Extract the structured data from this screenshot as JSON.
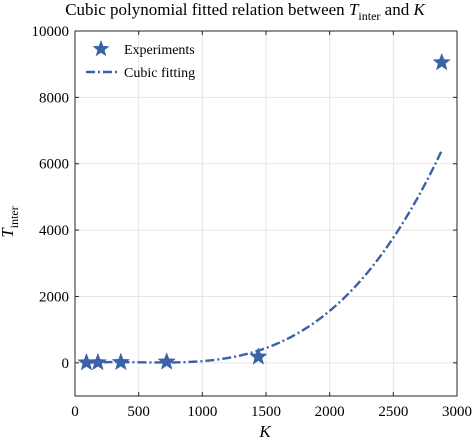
{
  "chart_data": {
    "type": "scatter",
    "title": {
      "prefix": "Cubic polynomial fitted relation between ",
      "var": "T",
      "sub": "inter",
      "suffix": " and ",
      "var2": "K"
    },
    "xlabel": "K",
    "ylabel": {
      "var": "T",
      "sub": "inter"
    },
    "xlim": [
      0,
      3000
    ],
    "ylim": [
      -1000,
      10000
    ],
    "xticks": [
      0,
      500,
      1000,
      1500,
      2000,
      2500,
      3000
    ],
    "yticks": [
      0,
      2000,
      4000,
      6000,
      8000,
      10000
    ],
    "grid": true,
    "legend_position": "top-left",
    "series": [
      {
        "name": "Experiments",
        "marker": "star",
        "color": "#3b62a6",
        "points": [
          {
            "x": 90,
            "y": 5
          },
          {
            "x": 180,
            "y": 10
          },
          {
            "x": 360,
            "y": 15
          },
          {
            "x": 720,
            "y": 30
          },
          {
            "x": 1440,
            "y": 180
          },
          {
            "x": 2880,
            "y": 9050
          }
        ]
      },
      {
        "name": "Cubic fitting",
        "style": "dash-dot",
        "color": "#3b62a6",
        "x_range": [
          90,
          2880
        ],
        "coefficients": {
          "a3": 4.85e-07,
          "a2": -0.000735,
          "a1": 0.323,
          "a0": -22
        }
      }
    ]
  }
}
